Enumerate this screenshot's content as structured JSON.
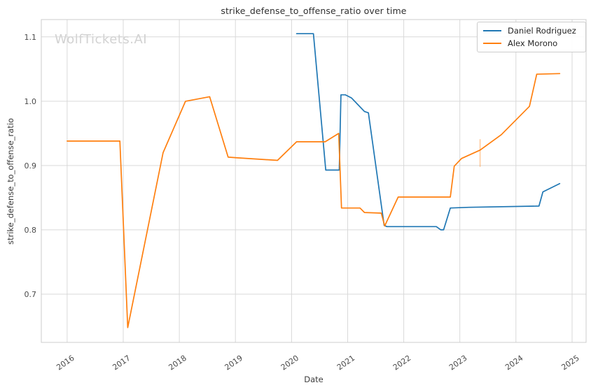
{
  "watermark": {
    "text": "WolfTickets.AI",
    "color": "#d2d2d2"
  },
  "legend": {
    "position": "upper right",
    "entries": [
      {
        "label": "Daniel Rodriguez",
        "color": "#1f77b4"
      },
      {
        "label": "Alex Morono",
        "color": "#ff7f0e"
      }
    ]
  },
  "chart_data": {
    "type": "line",
    "title": "strike_defense_to_offense_ratio over time",
    "xlabel": "Date",
    "ylabel": "strike_defense_to_offense_ratio",
    "xlim": [
      2015.54,
      2025.25
    ],
    "ylim": [
      0.625,
      1.127
    ],
    "xticks": [
      2016,
      2017,
      2018,
      2019,
      2020,
      2021,
      2022,
      2023,
      2024,
      2025
    ],
    "xtick_labels": [
      "2016",
      "2017",
      "2018",
      "2019",
      "2020",
      "2021",
      "2022",
      "2023",
      "2024",
      "2025"
    ],
    "yticks": [
      0.7,
      0.8,
      0.9,
      1.0,
      1.1
    ],
    "ytick_labels": [
      "0.7",
      "0.8",
      "0.9",
      "1.0",
      "1.1"
    ],
    "grid": true,
    "grid_color": "#d9d9d9",
    "border_color": "#cccccc",
    "legend_position": "upper right",
    "series": [
      {
        "name": "Daniel Rodriguez",
        "color": "#1f77b4",
        "points": [
          [
            2020.09,
            1.105
          ],
          [
            2020.39,
            1.105
          ],
          [
            2020.61,
            0.893
          ],
          [
            2020.85,
            0.893
          ],
          [
            2020.88,
            1.01
          ],
          [
            2020.96,
            1.01
          ],
          [
            2021.07,
            1.005
          ],
          [
            2021.3,
            0.984
          ],
          [
            2021.37,
            0.982
          ],
          [
            2021.65,
            0.807
          ],
          [
            2021.7,
            0.805
          ],
          [
            2022.58,
            0.805
          ],
          [
            2022.66,
            0.8
          ],
          [
            2022.71,
            0.8
          ],
          [
            2022.83,
            0.834
          ],
          [
            2023.16,
            0.835
          ],
          [
            2024.41,
            0.837
          ],
          [
            2024.48,
            0.859
          ],
          [
            2024.78,
            0.872
          ]
        ]
      },
      {
        "name": "Alex Morono",
        "color": "#ff7f0e",
        "points": [
          [
            2016.0,
            0.938
          ],
          [
            2016.94,
            0.938
          ],
          [
            2017.08,
            0.648
          ],
          [
            2017.71,
            0.92
          ],
          [
            2018.11,
            1.0
          ],
          [
            2018.54,
            1.007
          ],
          [
            2018.87,
            0.913
          ],
          [
            2019.04,
            0.912
          ],
          [
            2019.75,
            0.908
          ],
          [
            2020.09,
            0.937
          ],
          [
            2020.6,
            0.937
          ],
          [
            2020.84,
            0.95
          ],
          [
            2020.89,
            0.834
          ],
          [
            2021.22,
            0.834
          ],
          [
            2021.3,
            0.827
          ],
          [
            2021.6,
            0.826
          ],
          [
            2021.66,
            0.806
          ],
          [
            2021.9,
            0.851
          ],
          [
            2022.83,
            0.851
          ],
          [
            2022.9,
            0.899
          ],
          [
            2023.03,
            0.911
          ],
          [
            2023.36,
            0.924
          ],
          [
            2023.74,
            0.948
          ],
          [
            2024.24,
            0.992
          ],
          [
            2024.37,
            1.042
          ],
          [
            2024.78,
            1.043
          ]
        ]
      }
    ],
    "error_bar": {
      "x": 2023.36,
      "y_low": 0.898,
      "y_high": 0.941,
      "color": "#ff7f0e"
    }
  }
}
